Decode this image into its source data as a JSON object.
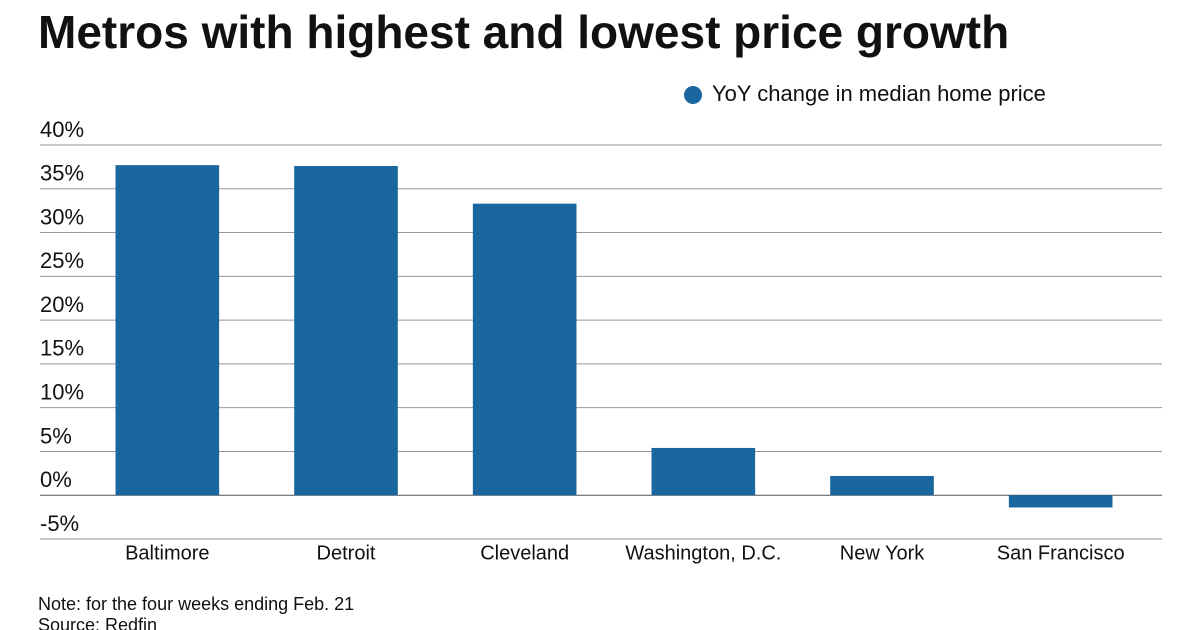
{
  "chart_data": {
    "type": "bar",
    "title": "Metros with highest and lowest price growth",
    "categories": [
      "Baltimore",
      "Detroit",
      "Cleveland",
      "Washington, D.C.",
      "New York",
      "San Francisco"
    ],
    "series": [
      {
        "name": "YoY change in median home price",
        "color": "#1a67a0",
        "values": [
          37.7,
          37.6,
          33.3,
          5.4,
          2.2,
          -1.4
        ]
      }
    ],
    "ylim": [
      -5,
      40
    ],
    "yticks": [
      {
        "value": -5,
        "label": "-5%"
      },
      {
        "value": 0,
        "label": "0%"
      },
      {
        "value": 5,
        "label": "5%"
      },
      {
        "value": 10,
        "label": "10%"
      },
      {
        "value": 15,
        "label": "15%"
      },
      {
        "value": 20,
        "label": "20%"
      },
      {
        "value": 25,
        "label": "25%"
      },
      {
        "value": 30,
        "label": "30%"
      },
      {
        "value": 35,
        "label": "35%"
      },
      {
        "value": 40,
        "label": "40%"
      }
    ],
    "grid": true,
    "legend": "top-right",
    "notes": [
      "Note: for the four weeks ending Feb. 21",
      "Source: Redfin"
    ]
  }
}
